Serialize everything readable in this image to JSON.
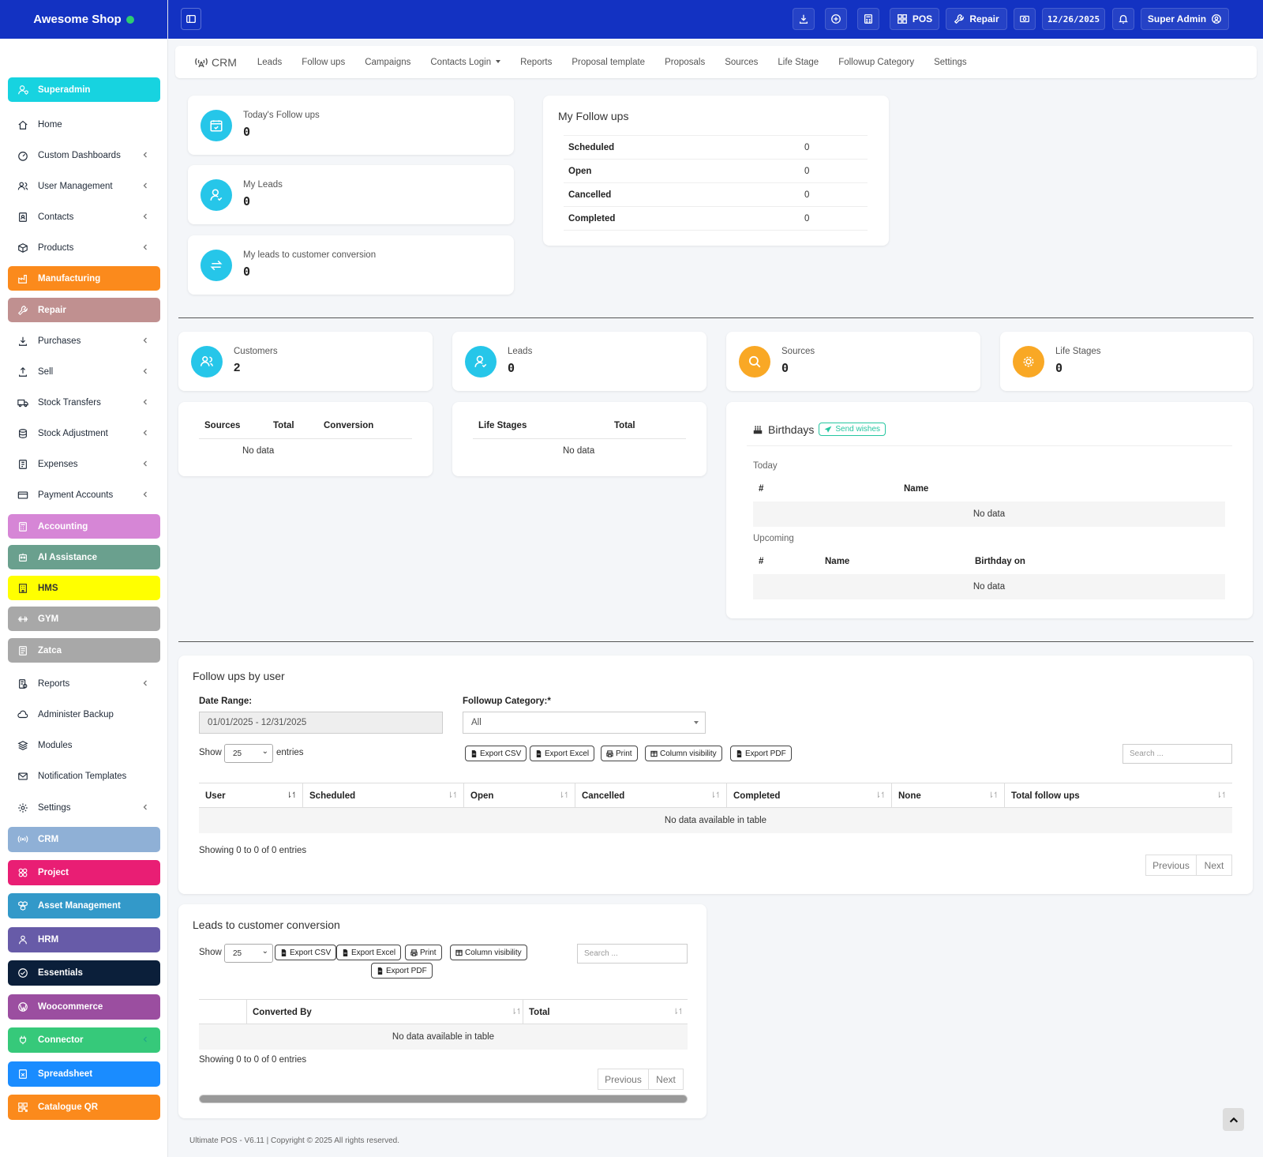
{
  "brand": {
    "name": "Awesome Shop",
    "status_color": "#2ecc71"
  },
  "sidebar": {
    "items": [
      {
        "label": "Superadmin",
        "icon": "user-shield-icon",
        "color": "#17d3e0",
        "chevron": false
      },
      {
        "label": "Home",
        "icon": "home-icon",
        "color": "",
        "chevron": false
      },
      {
        "label": "Custom Dashboards",
        "icon": "dashboard-icon",
        "color": "",
        "chevron": true
      },
      {
        "label": "User Management",
        "icon": "users-icon",
        "color": "",
        "chevron": true
      },
      {
        "label": "Contacts",
        "icon": "address-book-icon",
        "color": "",
        "chevron": true
      },
      {
        "label": "Products",
        "icon": "box-icon",
        "color": "",
        "chevron": true
      },
      {
        "label": "Manufacturing",
        "icon": "factory-icon",
        "color": "#fb8a1c",
        "chevron": false
      },
      {
        "label": "Repair",
        "icon": "wrench-icon",
        "color": "#c09090",
        "chevron": false
      },
      {
        "label": "Purchases",
        "icon": "download-icon",
        "color": "",
        "chevron": true
      },
      {
        "label": "Sell",
        "icon": "upload-icon",
        "color": "",
        "chevron": true
      },
      {
        "label": "Stock Transfers",
        "icon": "truck-icon",
        "color": "",
        "chevron": true
      },
      {
        "label": "Stock Adjustment",
        "icon": "database-icon",
        "color": "",
        "chevron": true
      },
      {
        "label": "Expenses",
        "icon": "receipt-icon",
        "color": "",
        "chevron": true
      },
      {
        "label": "Payment Accounts",
        "icon": "credit-card-icon",
        "color": "",
        "chevron": true
      },
      {
        "label": "Accounting",
        "icon": "calculator-icon",
        "color": "#d686d6",
        "chevron": false
      },
      {
        "label": "AI Assistance",
        "icon": "robot-icon",
        "color": "#6aa08e",
        "chevron": false
      },
      {
        "label": "HMS",
        "icon": "hotel-icon",
        "color": "#ffff00",
        "chevron": false
      },
      {
        "label": "GYM",
        "icon": "dumbbell-icon",
        "color": "#a8a8a8",
        "chevron": false
      },
      {
        "label": "Zatca",
        "icon": "invoice-icon",
        "color": "#a8a8a8",
        "chevron": false
      },
      {
        "label": "Reports",
        "icon": "report-icon",
        "color": "",
        "chevron": true
      },
      {
        "label": "Administer Backup",
        "icon": "cloud-icon",
        "color": "",
        "chevron": false
      },
      {
        "label": "Modules",
        "icon": "layers-icon",
        "color": "",
        "chevron": false
      },
      {
        "label": "Notification Templates",
        "icon": "envelope-icon",
        "color": "",
        "chevron": false
      },
      {
        "label": "Settings",
        "icon": "gear-icon",
        "color": "",
        "chevron": true
      },
      {
        "label": "CRM",
        "icon": "broadcast-icon",
        "color": "#8fb0d6",
        "chevron": false
      },
      {
        "label": "Project",
        "icon": "project-icon",
        "color": "#e91e74",
        "chevron": false
      },
      {
        "label": "Asset Management",
        "icon": "boxes-icon",
        "color": "#3399c9",
        "chevron": false
      },
      {
        "label": "HRM",
        "icon": "users-group-icon",
        "color": "#675ba8",
        "chevron": false
      },
      {
        "label": "Essentials",
        "icon": "check-circle-icon",
        "color": "#0b1f3a",
        "chevron": false
      },
      {
        "label": "Woocommerce",
        "icon": "wordpress-icon",
        "color": "#9b4ea0",
        "chevron": false
      },
      {
        "label": "Connector",
        "icon": "plug-icon",
        "color": "#36c97a",
        "chevron": true
      },
      {
        "label": "Spreadsheet",
        "icon": "spreadsheet-icon",
        "color": "#1a8cff",
        "chevron": false
      },
      {
        "label": "Catalogue QR",
        "icon": "qrcode-icon",
        "color": "#fb8a1c",
        "chevron": false
      }
    ]
  },
  "topbar": {
    "pos": "POS",
    "repair": "Repair",
    "date": "12/26/2025",
    "user": "Super Admin"
  },
  "crm_nav": {
    "brand": "CRM",
    "links": [
      "Leads",
      "Follow ups",
      "Campaigns",
      "Contacts Login",
      "Reports",
      "Proposal template",
      "Proposals",
      "Sources",
      "Life Stage",
      "Followup Category",
      "Settings"
    ]
  },
  "kpis": {
    "todays_followups": {
      "label": "Today's Follow ups",
      "value": "0"
    },
    "my_leads": {
      "label": "My Leads",
      "value": "0"
    },
    "conversion": {
      "label": "My leads to customer conversion",
      "value": "0"
    }
  },
  "my_followups": {
    "title": "My Follow ups",
    "rows": [
      {
        "label": "Scheduled",
        "value": "0"
      },
      {
        "label": "Open",
        "value": "0"
      },
      {
        "label": "Cancelled",
        "value": "0"
      },
      {
        "label": "Completed",
        "value": "0"
      }
    ]
  },
  "stats": {
    "customers": {
      "label": "Customers",
      "value": "2"
    },
    "leads": {
      "label": "Leads",
      "value": "0"
    },
    "sources": {
      "label": "Sources",
      "value": "0"
    },
    "life_stages": {
      "label": "Life Stages",
      "value": "0"
    }
  },
  "colors": {
    "teal": "#26c6e9",
    "orange": "#f9a825",
    "nav": "#1332c2"
  },
  "sources_table": {
    "headers": [
      "Sources",
      "Total",
      "Conversion"
    ],
    "empty": "No data"
  },
  "lifestage_table": {
    "headers": [
      "Life Stages",
      "Total"
    ],
    "empty": "No data"
  },
  "birthdays": {
    "title": "Birthdays",
    "send_wishes": "Send wishes",
    "today": "Today",
    "today_headers": [
      "#",
      "Name"
    ],
    "today_empty": "No data",
    "upcoming": "Upcoming",
    "upcoming_headers": [
      "#",
      "Name",
      "Birthday on"
    ],
    "upcoming_empty": "No data"
  },
  "followups_by_user": {
    "title": "Follow ups by user",
    "date_range_label": "Date Range:",
    "date_range_value": "01/01/2025 - 12/31/2025",
    "category_label": "Followup Category:*",
    "category_value": "All",
    "show": "Show",
    "entries": "entries",
    "page_size": "25",
    "buttons": [
      "Export CSV",
      "Export Excel",
      "Print",
      "Column visibility",
      "Export PDF"
    ],
    "search_placeholder": "Search ...",
    "headers": [
      "User",
      "Scheduled",
      "Open",
      "Cancelled",
      "Completed",
      "None",
      "Total follow ups"
    ],
    "empty": "No data available in table",
    "info": "Showing 0 to 0 of 0 entries",
    "prev": "Previous",
    "next": "Next"
  },
  "leads_conversion": {
    "title": "Leads to customer conversion",
    "show": "Show",
    "page_size": "25",
    "buttons": [
      "Export CSV",
      "Export Excel",
      "Print",
      "Column visibility",
      "Export PDF"
    ],
    "search_placeholder": "Search ...",
    "headers": [
      "Converted By",
      "Total"
    ],
    "empty": "No data available in table",
    "info": "Showing 0 to 0 of 0 entries",
    "prev": "Previous",
    "next": "Next"
  },
  "footer": {
    "text": "Ultimate POS - V6.11 | Copyright © 2025 All rights reserved."
  }
}
